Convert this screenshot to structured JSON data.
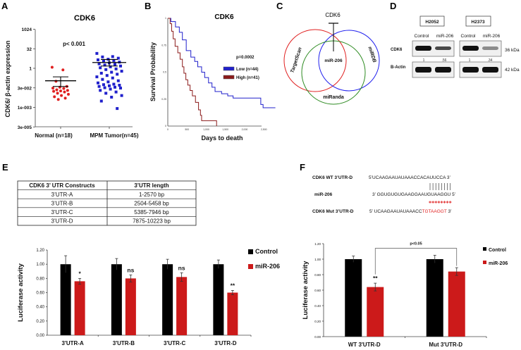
{
  "panels": [
    "A",
    "B",
    "C",
    "D",
    "E",
    "F"
  ],
  "colors": {
    "red": "#e02020",
    "blue": "#2020cc",
    "dark_red": "#8b1a1a",
    "green": "#2e8b22",
    "bar_black": "#000000",
    "bar_red": "#cc1a1a"
  },
  "chart_data": [
    {
      "id": "A",
      "type": "scatter",
      "title": "CDK6",
      "ylabel": "CDK6/ β-actin expression",
      "yscale": "log2",
      "yticks": [
        "1024",
        "32",
        "1",
        "3e-002",
        "1e-003",
        "3e-005"
      ],
      "ytick_values": [
        1024,
        32,
        1,
        0.03125,
        0.000977,
        3.05e-05
      ],
      "annotation": "p< 0.001",
      "categories": [
        "Normal (n=18)",
        "MPM Tumor(n=45)"
      ],
      "series": [
        {
          "name": "Normal",
          "mean": 0.11,
          "sem_low": 0.04,
          "sem_high": 0.22,
          "values": [
            1.2,
            0.75,
            0.1,
            0.04,
            0.035,
            0.03,
            0.028,
            0.022,
            0.02,
            0.018,
            0.017,
            0.015,
            0.012,
            0.01,
            0.008,
            0.0065,
            0.005,
            0.004
          ]
        },
        {
          "name": "MPM Tumor",
          "mean": 2.8,
          "sem_low": 1.5,
          "sem_high": 4.8,
          "values": [
            14,
            8,
            7.5,
            6,
            5,
            4.5,
            4,
            3.5,
            3,
            2.6,
            2.2,
            2,
            1.8,
            1.5,
            1.3,
            1.1,
            0.9,
            0.8,
            0.6,
            0.5,
            0.42,
            0.35,
            0.28,
            0.22,
            0.18,
            0.14,
            0.11,
            0.09,
            0.075,
            0.06,
            0.055,
            0.05,
            0.045,
            0.04,
            0.035,
            0.032,
            0.03,
            0.025,
            0.02,
            0.015,
            0.012,
            0.008,
            0.006,
            0.003,
            0.0008
          ]
        }
      ]
    },
    {
      "id": "B",
      "type": "line",
      "title": "CDK6",
      "xlabel": "Days to death",
      "ylabel": "Survival Probability",
      "xlim": [
        0,
        2800
      ],
      "ylim": [
        0,
        1
      ],
      "xticks": [
        "0",
        "500",
        "1,000",
        "1,500",
        "2,000",
        "2,500"
      ],
      "xtick_values": [
        0,
        500,
        1000,
        1500,
        2000,
        2500
      ],
      "yticks": [
        "0",
        "0.25",
        "0.5",
        "0.75",
        "1"
      ],
      "ytick_values": [
        0,
        0.25,
        0.5,
        0.75,
        1
      ],
      "annotation": "p=0.0002",
      "legend": "right",
      "series": [
        {
          "name": "Low (n=44)",
          "steps": [
            [
              0,
              1
            ],
            [
              80,
              0.97
            ],
            [
              200,
              0.92
            ],
            [
              300,
              0.87
            ],
            [
              380,
              0.8
            ],
            [
              480,
              0.7
            ],
            [
              600,
              0.64
            ],
            [
              700,
              0.6
            ],
            [
              780,
              0.55
            ],
            [
              880,
              0.5
            ],
            [
              960,
              0.45
            ],
            [
              1060,
              0.4
            ],
            [
              1150,
              0.36
            ],
            [
              1230,
              0.32
            ],
            [
              1400,
              0.3
            ],
            [
              1560,
              0.28
            ],
            [
              1700,
              0.26
            ],
            [
              2350,
              0.26
            ],
            [
              2420,
              0.2
            ],
            [
              2480,
              0.17
            ],
            [
              2800,
              0.17
            ]
          ]
        },
        {
          "name": "High (n=41)",
          "steps": [
            [
              0,
              1
            ],
            [
              60,
              0.95
            ],
            [
              100,
              0.88
            ],
            [
              140,
              0.81
            ],
            [
              190,
              0.74
            ],
            [
              260,
              0.68
            ],
            [
              320,
              0.62
            ],
            [
              380,
              0.55
            ],
            [
              420,
              0.49
            ],
            [
              470,
              0.43
            ],
            [
              520,
              0.38
            ],
            [
              580,
              0.33
            ],
            [
              640,
              0.28
            ],
            [
              720,
              0.22
            ],
            [
              800,
              0.15
            ],
            [
              850,
              0.1
            ],
            [
              880,
              0.05
            ],
            [
              1270,
              0.05
            ],
            [
              1270,
              0
            ]
          ]
        }
      ]
    },
    {
      "id": "E",
      "type": "bar",
      "ylabel": "Luciferase activity",
      "ylim": [
        0,
        1.2
      ],
      "yticks": [
        "0.00",
        "0.20",
        "0.40",
        "0.60",
        "0.80",
        "1.00",
        "1.20"
      ],
      "categories": [
        "3'UTR-A",
        "3'UTR-B",
        "3'UTR-C",
        "3'UTR-D"
      ],
      "series": [
        {
          "name": "Control",
          "values": [
            1.0,
            1.0,
            1.0,
            1.0
          ],
          "errors": [
            0.12,
            0.08,
            0.07,
            0.06
          ]
        },
        {
          "name": "miR-206",
          "values": [
            0.76,
            0.8,
            0.82,
            0.6
          ],
          "errors": [
            0.04,
            0.05,
            0.06,
            0.03
          ]
        }
      ],
      "significance": [
        "*",
        "ns",
        "ns",
        "**"
      ],
      "legend": "top-right"
    },
    {
      "id": "F",
      "type": "bar",
      "ylabel": "Luciferase activity",
      "ylim": [
        0,
        1.2
      ],
      "yticks": [
        "0.00",
        "0.20",
        "0.40",
        "0.60",
        "0.80",
        "1.00",
        "1.20"
      ],
      "categories": [
        "WT 3'UTR-D",
        "Mut 3'UTR-D"
      ],
      "series": [
        {
          "name": "Control",
          "values": [
            1.0,
            1.0
          ],
          "errors": [
            0.04,
            0.05
          ]
        },
        {
          "name": "miR-206",
          "values": [
            0.64,
            0.84
          ],
          "errors": [
            0.05,
            0.05
          ]
        }
      ],
      "significance": [
        "**",
        ""
      ],
      "bracket_label": "p<0.05",
      "legend": "top-right"
    }
  ],
  "venn": {
    "target": "CDK6",
    "center": "miR-206",
    "sets": [
      "TargetScan",
      "miRDB",
      "miRanda"
    ]
  },
  "western": {
    "cell_lines": [
      "H2052",
      "H2373"
    ],
    "lanes": [
      "Control",
      "miR-206",
      "Control",
      "miR-206"
    ],
    "rows": [
      "CDK6",
      "B-Actin"
    ],
    "sizes": [
      "36 kDa",
      "42 kDa"
    ],
    "quant": [
      "1",
      ".56",
      "1",
      ".34"
    ]
  },
  "table": {
    "headers": [
      "CDK6 3’ UTR Constructs",
      "3’UTR length"
    ],
    "rows": [
      [
        "3’UTR-A",
        "1-2570 bp"
      ],
      [
        "3’UTR-B",
        "2504-5458 bp"
      ],
      [
        "3’UTR-C",
        "5385-7946 bp"
      ],
      [
        "3’UTR-D",
        "7875-10223 bp"
      ]
    ]
  },
  "sequences": {
    "wt_label": "CDK6 WT 3’UTR-D",
    "wt": "5’UCAAGAAUAUAAACCACAUUCCA  3’",
    "mir_label": "miR-206",
    "mir": "3’ GGUGUGUGAAGGAAUGUAAGGU  5’",
    "mut_label": "CDK6 Mut 3’UTR-D",
    "mut_prefix": "5’ UCAAGAAUAUAAACC",
    "mut_red": "TGTAAGGT",
    "mut_suffix": " 3’"
  }
}
